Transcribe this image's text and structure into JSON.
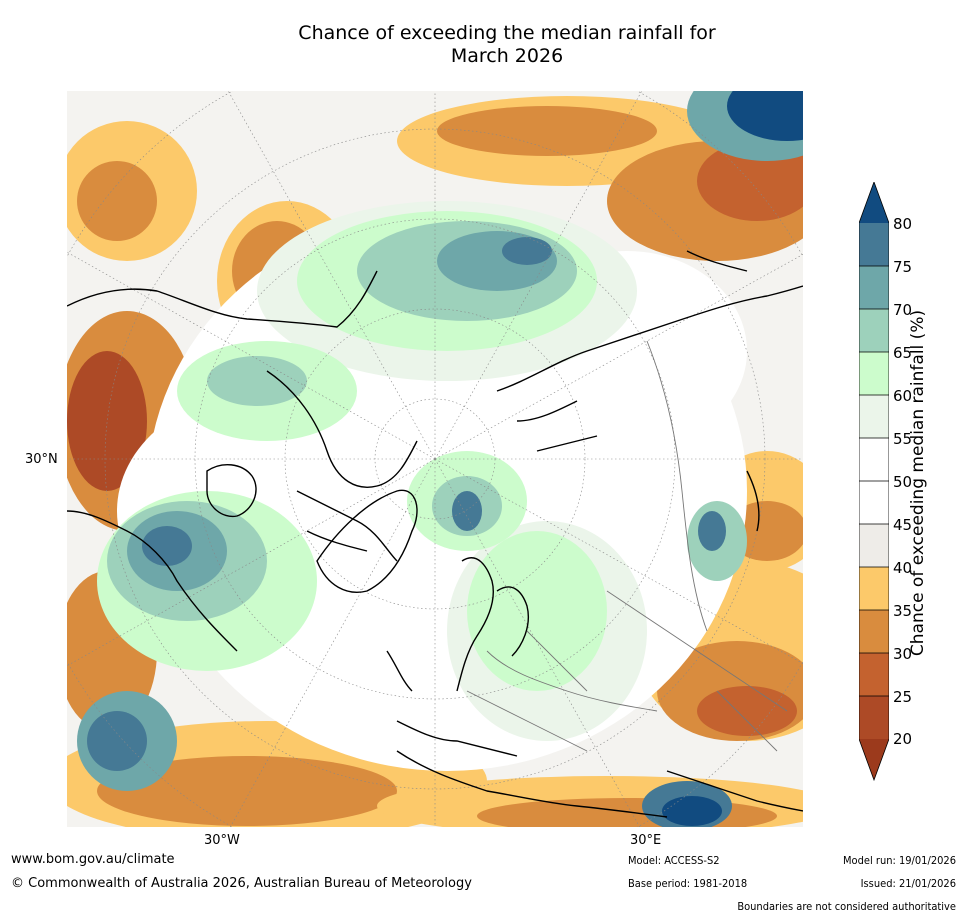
{
  "title_line1": "Chance of exceeding the median rainfall for",
  "title_line2": "March 2026",
  "map": {
    "lon_labels": [
      "30°W",
      "30°E"
    ],
    "lat_labels": [
      "30°N"
    ],
    "colors": {
      "c20": "#9c3a1c",
      "c25": "#ad4a26",
      "c30": "#c4622f",
      "c35": "#d98c3e",
      "c40": "#fcc96a",
      "c45": "#eeece8",
      "c50": "#ffffff",
      "c55": "#ffffff",
      "c60": "#ebf5ea",
      "c65": "#ccfccc",
      "c70": "#9dd1bb",
      "c75": "#6ea7a9",
      "c80": "#457995",
      "c85": "#114b80"
    }
  },
  "colorbar": {
    "label": "Chance of exceeding median rainfall (%)",
    "ticks": [
      "80",
      "75",
      "70",
      "65",
      "60",
      "55",
      "50",
      "45",
      "40",
      "35",
      "30",
      "25",
      "20"
    ]
  },
  "footer": {
    "website": "www.bom.gov.au/climate",
    "copyright": "© Commonwealth of Australia 2026, Australian Bureau of Meteorology",
    "model": "Model: ACCESS-S2",
    "base_period": "Base period: 1981-2018",
    "model_run": "Model run: 19/01/2026",
    "issued": "Issued: 21/01/2026",
    "disclaimer": "Boundaries are not considered authoritative"
  }
}
